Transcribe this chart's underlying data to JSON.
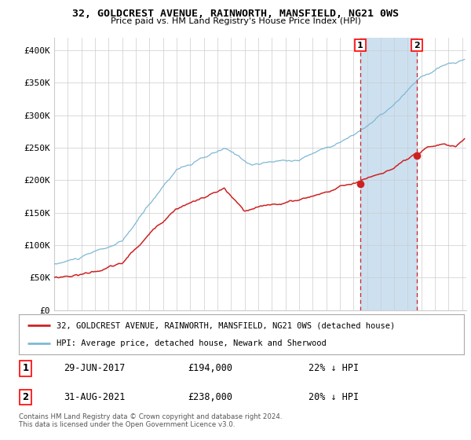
{
  "title": "32, GOLDCREST AVENUE, RAINWORTH, MANSFIELD, NG21 0WS",
  "subtitle": "Price paid vs. HM Land Registry's House Price Index (HPI)",
  "legend_line1": "32, GOLDCREST AVENUE, RAINWORTH, MANSFIELD, NG21 0WS (detached house)",
  "legend_line2": "HPI: Average price, detached house, Newark and Sherwood",
  "sale1_date": "29-JUN-2017",
  "sale1_price": 194000,
  "sale1_label": "22% ↓ HPI",
  "sale2_date": "31-AUG-2021",
  "sale2_price": 238000,
  "sale2_label": "20% ↓ HPI",
  "footnote": "Contains HM Land Registry data © Crown copyright and database right 2024.\nThis data is licensed under the Open Government Licence v3.0.",
  "hpi_color": "#7eb8d4",
  "property_color": "#cc2222",
  "sale_dot_color": "#cc2222",
  "vline_color": "#cc2222",
  "shade_color": "#cce0f0",
  "sale1_x": 2017.5,
  "sale2_x": 2021.67,
  "ylim_max": 420000,
  "background_color": "#ffffff",
  "grid_color": "#cccccc"
}
